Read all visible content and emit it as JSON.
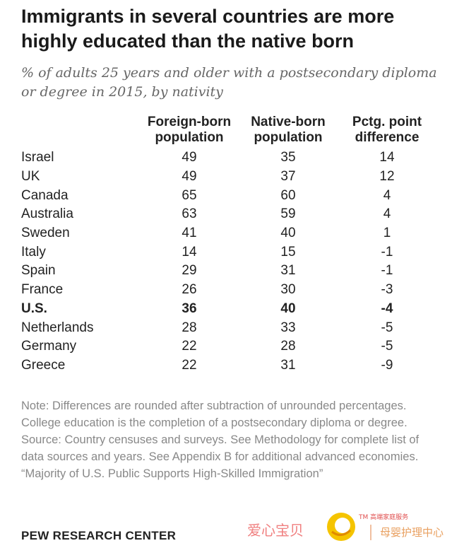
{
  "chart_data": {
    "type": "table",
    "title": "Immigrants in several countries are more highly educated than the native born",
    "subtitle": "% of adults 25 years and older with a postsecondary diploma or degree in 2015, by nativity",
    "columns": [
      "",
      "Foreign-born population",
      "Native-born population",
      "Pctg. point difference"
    ],
    "rows": [
      {
        "country": "Israel",
        "foreign_born": "49",
        "native_born": "35",
        "difference": "14"
      },
      {
        "country": "UK",
        "foreign_born": "49",
        "native_born": "37",
        "difference": "12"
      },
      {
        "country": "Canada",
        "foreign_born": "65",
        "native_born": "60",
        "difference": "4"
      },
      {
        "country": "Australia",
        "foreign_born": "63",
        "native_born": "59",
        "difference": "4"
      },
      {
        "country": "Sweden",
        "foreign_born": "41",
        "native_born": "40",
        "difference": "1"
      },
      {
        "country": "Italy",
        "foreign_born": "14",
        "native_born": "15",
        "difference": "-1"
      },
      {
        "country": "Spain",
        "foreign_born": "29",
        "native_born": "31",
        "difference": "-1"
      },
      {
        "country": "France",
        "foreign_born": "26",
        "native_born": "30",
        "difference": "-3"
      },
      {
        "country": "U.S.",
        "foreign_born": "36",
        "native_born": "40",
        "difference": "-4"
      },
      {
        "country": "Netherlands",
        "foreign_born": "28",
        "native_born": "33",
        "difference": "-5"
      },
      {
        "country": "Germany",
        "foreign_born": "22",
        "native_born": "28",
        "difference": "-5"
      },
      {
        "country": "Greece",
        "foreign_born": "22",
        "native_born": "31",
        "difference": "-9"
      }
    ],
    "highlighted_row": "U.S."
  },
  "header": {
    "col1": "",
    "col2_line1": "Foreign-born",
    "col2_line2": "population",
    "col3_line1": "Native-born",
    "col3_line2": "population",
    "col4_line1": "Pctg. point",
    "col4_line2": "difference"
  },
  "notes": {
    "note": "Note: Differences are rounded after subtraction of unrounded percentages. College education is the completion of a postsecondary diploma or degree.",
    "source": "Source: Country censuses and surveys. See Methodology for complete list of data sources and years. See Appendix B for additional advanced economies.",
    "report": "“Majority of U.S. Public Supports High-Skilled Immigration”"
  },
  "brand": "PEW RESEARCH CENTER",
  "watermark": {
    "text_left": "爱心宝贝",
    "tm_text": "TM 高端家庭服务",
    "text_right": "母婴护理中心"
  },
  "colors": {
    "title": "#1a1a1a",
    "subtitle": "#666666",
    "notes": "#888888",
    "watermark_pink": "#f08080",
    "watermark_orange": "#e9a060",
    "logo_yellow": "#f5c400"
  }
}
